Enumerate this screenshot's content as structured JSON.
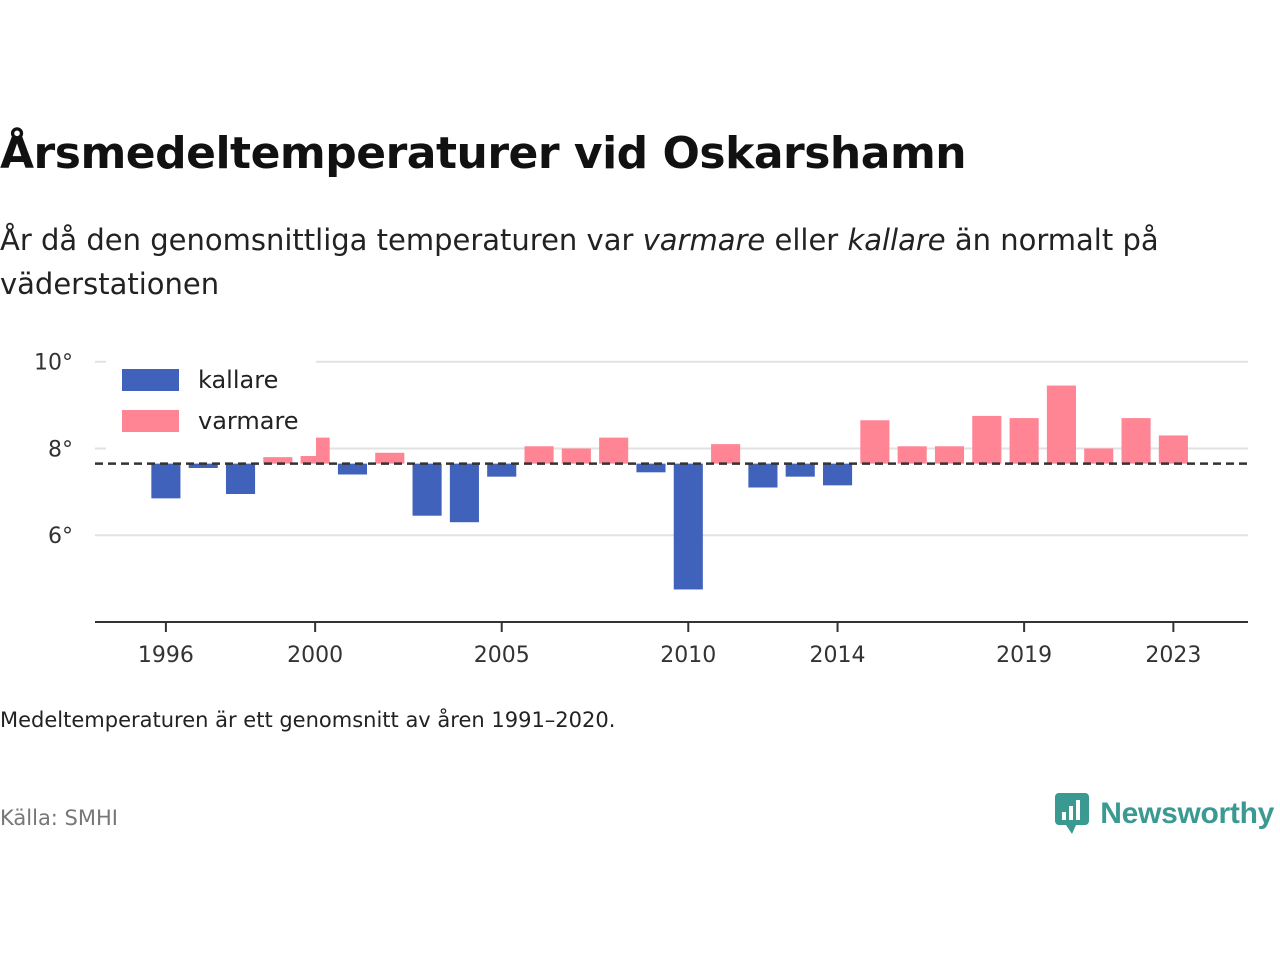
{
  "title": "Årsmedeltemperaturer vid Oskarshamn",
  "subtitle": {
    "part1": "År då den genomsnittliga temperaturen var ",
    "warmer": "varmare",
    "part2": " eller ",
    "colder": "kallare",
    "part3": " än normalt på väderstationen"
  },
  "note": "Medeltemperaturen är ett genomsnitt av åren 1991–2020.",
  "source": "Källa: SMHI",
  "brand": "Newsworthy",
  "colors": {
    "colder": "#4062bb",
    "warmer": "#ff8595",
    "baseline": "#333333",
    "grid": "#e2e2e2",
    "brand": "#3a9a92"
  },
  "chart_data": {
    "type": "bar",
    "baseline": 7.65,
    "ylim": [
      4.0,
      10.5
    ],
    "yticks": [
      {
        "value": 6,
        "label": "6°"
      },
      {
        "value": 8,
        "label": "8°"
      },
      {
        "value": 10,
        "label": "10°"
      }
    ],
    "xlim": [
      1994.1,
      2025.0
    ],
    "xticks": [
      {
        "value": 1996,
        "label": "1996"
      },
      {
        "value": 2000,
        "label": "2000"
      },
      {
        "value": 2005,
        "label": "2005"
      },
      {
        "value": 2010,
        "label": "2010"
      },
      {
        "value": 2014,
        "label": "2014"
      },
      {
        "value": 2019,
        "label": "2019"
      },
      {
        "value": 2023,
        "label": "2023"
      }
    ],
    "legend": {
      "position": "top-left",
      "items": [
        {
          "key": "colder",
          "label": "kallare"
        },
        {
          "key": "warmer",
          "label": "varmare"
        }
      ]
    },
    "grid": true,
    "x": [
      1996,
      1997,
      1998,
      1999,
      2000,
      2001,
      2002,
      2003,
      2004,
      2005,
      2006,
      2007,
      2008,
      2009,
      2010,
      2011,
      2012,
      2013,
      2014,
      2015,
      2016,
      2017,
      2018,
      2019,
      2020,
      2021,
      2022,
      2023
    ],
    "values": [
      6.85,
      7.55,
      6.95,
      7.8,
      8.25,
      7.4,
      7.9,
      6.45,
      6.3,
      7.35,
      8.05,
      8.0,
      8.25,
      7.45,
      4.75,
      8.1,
      7.1,
      7.35,
      7.15,
      8.65,
      8.05,
      8.05,
      8.75,
      8.7,
      9.45,
      8.0,
      8.7,
      8.3
    ]
  }
}
